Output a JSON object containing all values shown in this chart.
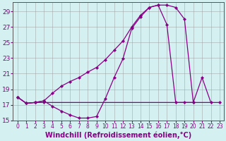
{
  "xlabel": "Windchill (Refroidissement éolien,°C)",
  "bg_color": "#d4f0f0",
  "grid_color": "#999999",
  "line_color": "#880088",
  "xlim": [
    -0.5,
    23.5
  ],
  "ylim": [
    15,
    30.2
  ],
  "yticks": [
    15,
    17,
    19,
    21,
    23,
    25,
    27,
    29
  ],
  "xticks": [
    0,
    1,
    2,
    3,
    4,
    5,
    6,
    7,
    8,
    9,
    10,
    11,
    12,
    13,
    14,
    15,
    16,
    17,
    18,
    19,
    20,
    21,
    22,
    23
  ],
  "line1_x": [
    0,
    1,
    2,
    3,
    4,
    5,
    6,
    7,
    8,
    9,
    10,
    11,
    12,
    13,
    14,
    15,
    16,
    17,
    18,
    19,
    20,
    21,
    22
  ],
  "line1_y": [
    18.0,
    17.2,
    17.3,
    17.5,
    16.8,
    16.2,
    15.7,
    15.3,
    15.3,
    15.5,
    17.8,
    20.5,
    22.9,
    26.8,
    28.3,
    29.5,
    29.8,
    27.3,
    17.3,
    17.3,
    17.3,
    20.5,
    17.3
  ],
  "line2_x": [
    0,
    1,
    2,
    3,
    4,
    5,
    6,
    7,
    8,
    9,
    10,
    11,
    12,
    13,
    14,
    15,
    16,
    17,
    18,
    19,
    20
  ],
  "line2_y": [
    18.0,
    17.2,
    17.3,
    17.5,
    18.5,
    19.4,
    20.0,
    20.5,
    21.2,
    21.8,
    22.8,
    24.0,
    25.2,
    27.0,
    28.5,
    29.5,
    29.8,
    29.8,
    29.5,
    28.0,
    17.3
  ],
  "line3_x": [
    0,
    1,
    2,
    3,
    23
  ],
  "line3_y": [
    18.0,
    17.2,
    17.3,
    17.3,
    17.3
  ],
  "xlabel_fontsize": 7,
  "tick_fontsize": 6.5
}
